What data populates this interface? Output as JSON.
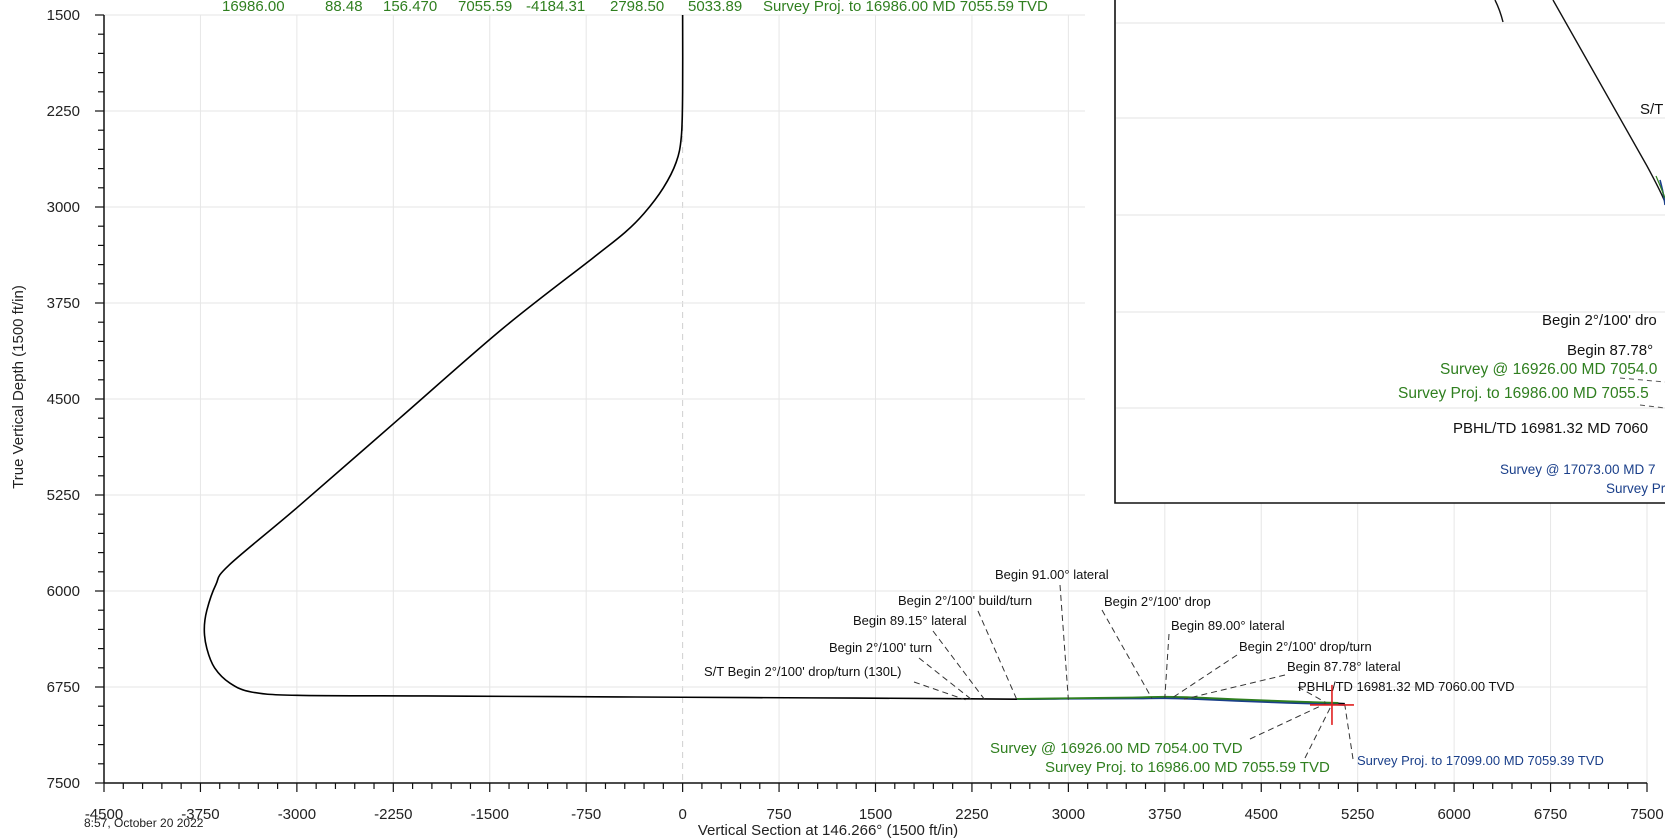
{
  "chart_data": {
    "type": "line",
    "xlabel": "Vertical Section at 146.266° (1500 ft/in)",
    "ylabel": "True Vertical Depth (1500 ft/in)",
    "xlim": [
      -4500,
      7500
    ],
    "ylim": [
      7500,
      1500
    ],
    "x_ticks": [
      -4500,
      -3750,
      -3000,
      -2250,
      -1500,
      -750,
      0,
      750,
      1500,
      2250,
      3000,
      3750,
      4500,
      5250,
      6000,
      6750,
      7500
    ],
    "x_tick_labels": [
      "-4500",
      "-3750",
      "-3000",
      "-2250",
      "-1500",
      "-750",
      "0",
      "750",
      "1500",
      "2250",
      "3000",
      "3750",
      "4500",
      "5250",
      "6000",
      "6750",
      "7500"
    ],
    "y_ticks": [
      1500,
      2250,
      3000,
      3750,
      4500,
      5250,
      6000,
      6750,
      7500
    ],
    "y_tick_labels": [
      "1500",
      "2250",
      "3000",
      "3750",
      "4500",
      "5250",
      "6000",
      "6750",
      "7500"
    ],
    "grid": true,
    "series": [
      {
        "color": "#000000",
        "x": [
          0,
          0,
          -10,
          -50,
          -150,
          -300,
          -450,
          -700,
          -1400,
          -2200,
          -3000,
          -3530,
          -3630,
          -3700,
          -3720,
          -3700,
          -3640,
          -3520,
          -3350,
          -3000,
          -2000,
          -1000,
          0,
          1000,
          2000,
          2600,
          3000,
          3500,
          3750,
          4000,
          4300,
          4600,
          4900,
          5150
        ],
        "y": [
          1500,
          2100,
          2450,
          2650,
          2850,
          3050,
          3200,
          3400,
          3950,
          4650,
          5350,
          5800,
          5950,
          6150,
          6300,
          6450,
          6600,
          6720,
          6790,
          6815,
          6820,
          6825,
          6830,
          6835,
          6840,
          6845,
          6840,
          6835,
          6830,
          6838,
          6850,
          6860,
          6870,
          6880
        ]
      },
      {
        "color": "#1a3f8a",
        "x": [
          2600,
          3000,
          3500,
          3750,
          4000,
          4300,
          4600,
          4900,
          5150
        ],
        "y": [
          6845,
          6842,
          6840,
          6838,
          6845,
          6858,
          6870,
          6880,
          6890
        ]
      },
      {
        "color": "#2f7f1f",
        "x": [
          2600,
          3000,
          3500,
          3750,
          4000,
          4300,
          4600,
          4900,
          5100
        ],
        "y": [
          6843,
          6838,
          6832,
          6826,
          6832,
          6846,
          6858,
          6868,
          6874
        ]
      }
    ],
    "target": {
      "x": 5050,
      "y": 6890,
      "color": "#e02020"
    },
    "annotations": [
      {
        "text": "Begin 91.00° lateral",
        "color": "black",
        "x": 3000,
        "y": 6850
      },
      {
        "text": "Begin 2°/100' build/turn",
        "color": "black",
        "x": 2600,
        "y": 6850
      },
      {
        "text": "Begin 89.15° lateral",
        "color": "black",
        "x": 2350,
        "y": 6850
      },
      {
        "text": "Begin 2°/100' turn",
        "color": "black",
        "x": 2250,
        "y": 6850
      },
      {
        "text": "S/T Begin 2°/100' drop/turn (130L)",
        "color": "black",
        "x": 2200,
        "y": 6850
      },
      {
        "text": "Begin 2°/100' drop",
        "color": "black",
        "x": 3650,
        "y": 6840
      },
      {
        "text": "Begin 89.00° lateral",
        "color": "black",
        "x": 3750,
        "y": 6835
      },
      {
        "text": "Begin 2°/100' drop/turn",
        "color": "black",
        "x": 3800,
        "y": 6840
      },
      {
        "text": "Begin 87.78° lateral",
        "color": "black",
        "x": 3900,
        "y": 6845
      },
      {
        "text": "PBHL/TD 16981.32 MD 7060.00 TVD",
        "color": "black",
        "x": 5000,
        "y": 6870
      },
      {
        "text": "Survey @ 16926.00 MD 7054.00 TVD",
        "color": "green",
        "x": 5000,
        "y": 6880
      },
      {
        "text": "Survey Proj. to 16986.00 MD 7055.59 TVD",
        "color": "green",
        "x": 5050,
        "y": 6885
      },
      {
        "text": "Survey Proj. to 17099.00 MD 7059.39 TVD",
        "color": "blue",
        "x": 5150,
        "y": 6890
      }
    ]
  },
  "header_row": [
    "16986.00",
    "88.48",
    "156.470",
    "7055.59",
    "-4184.31",
    "2798.50",
    "5033.89",
    "Survey Proj. to 16986.00 MD 7055.59 TVD"
  ],
  "inset_labels": {
    "st": "S/T",
    "drop": "Begin 2°/100' dro",
    "lateral": "Begin 87.78°",
    "survey_green_1": "Survey @ 16926.00 MD 7054.0",
    "survey_green_2": "Survey Proj. to 16986.00 MD 7055.5",
    "pbhl": "PBHL/TD 16981.32 MD 7060",
    "survey_blue_1": "Survey @ 17073.00 MD 7",
    "survey_blue_2": "Survey Pr"
  },
  "timestamp": "8:57, October 20 2022"
}
